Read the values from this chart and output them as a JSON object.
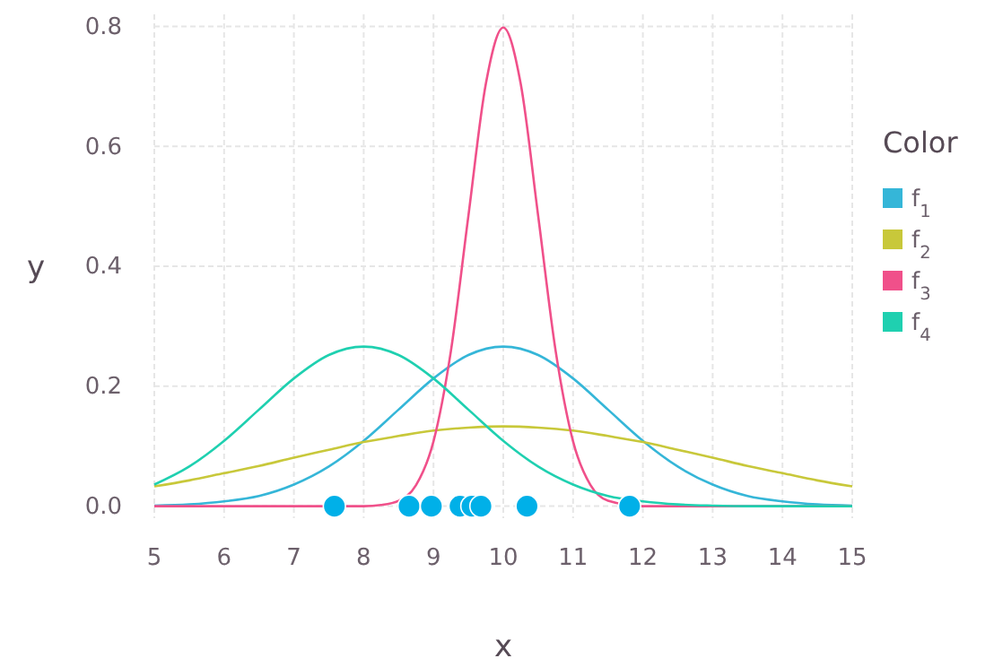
{
  "chart_data": {
    "type": "line",
    "xlabel": "x",
    "ylabel": "y",
    "legend_title": "Color",
    "legend": "right",
    "grid": true,
    "line_style": "solid",
    "xlim": [
      5,
      15
    ],
    "ylim": [
      -0.02,
      0.82
    ],
    "xticks": [
      5,
      6,
      7,
      8,
      9,
      10,
      11,
      12,
      13,
      14,
      15
    ],
    "yticks": [
      {
        "value": 0,
        "label": "0.0"
      },
      {
        "value": 0.2,
        "label": "0.2"
      },
      {
        "value": 0.4,
        "label": "0.4"
      },
      {
        "value": 0.6,
        "label": "0.6"
      },
      {
        "value": 0.8,
        "label": "0.8"
      }
    ],
    "series": [
      {
        "name": "f$_{1}$",
        "color": "#35b6d8",
        "marker": "none",
        "x": [
          5,
          5.5,
          6,
          6.5,
          7,
          7.5,
          8,
          8.5,
          9,
          9.5,
          10,
          10.5,
          11,
          11.5,
          12,
          12.5,
          13,
          13.5,
          14,
          14.5,
          15
        ],
        "values": [
          0.001,
          0.003,
          0.008,
          0.017,
          0.036,
          0.066,
          0.109,
          0.161,
          0.213,
          0.252,
          0.266,
          0.252,
          0.213,
          0.161,
          0.109,
          0.066,
          0.036,
          0.017,
          0.008,
          0.003,
          0.001
        ]
      },
      {
        "name": "f$_{2}$",
        "color": "#c8c83a",
        "marker": "none",
        "x": [
          5,
          5.5,
          6,
          6.5,
          7,
          7.5,
          8,
          8.5,
          9,
          9.5,
          10,
          10.5,
          11,
          11.5,
          12,
          12.5,
          13,
          13.5,
          14,
          14.5,
          15
        ],
        "values": [
          0.033,
          0.043,
          0.055,
          0.067,
          0.081,
          0.094,
          0.107,
          0.117,
          0.126,
          0.131,
          0.133,
          0.131,
          0.126,
          0.117,
          0.107,
          0.094,
          0.081,
          0.067,
          0.055,
          0.043,
          0.033
        ]
      },
      {
        "name": "f$_{3}$",
        "color": "#f0508a",
        "marker": "none",
        "x": [
          5,
          8,
          8.25,
          8.5,
          8.75,
          9,
          9.25,
          9.5,
          9.75,
          10,
          10.25,
          10.5,
          10.75,
          11,
          11.25,
          11.5,
          11.75,
          12,
          15
        ],
        "values": [
          0,
          0,
          0.002,
          0.009,
          0.035,
          0.108,
          0.259,
          0.484,
          0.704,
          0.798,
          0.704,
          0.484,
          0.259,
          0.108,
          0.035,
          0.009,
          null,
          0,
          0
        ]
      },
      {
        "name": "f$_{4}$",
        "color": "#1fd0b0",
        "marker": "none",
        "x": [
          5,
          5.5,
          6,
          6.5,
          7,
          7.5,
          8,
          8.5,
          9,
          9.5,
          10,
          10.5,
          11,
          11.5,
          12,
          12.5,
          13,
          13.5,
          14,
          14.5,
          15
        ],
        "values": [
          0.036,
          0.066,
          0.109,
          0.161,
          0.213,
          0.252,
          0.266,
          0.252,
          0.213,
          0.161,
          0.109,
          0.066,
          0.036,
          0.017,
          0.008,
          0.003,
          0.001,
          0,
          0,
          0,
          0
        ]
      },
      {
        "type": "scatter",
        "color": "#00b0e8",
        "marker": "circle",
        "x": [
          7.58,
          8.65,
          8.97,
          9.38,
          9.55,
          9.68,
          10.34,
          11.81
        ],
        "values": [
          0,
          0,
          0,
          0,
          0,
          0,
          0,
          0
        ]
      }
    ]
  }
}
